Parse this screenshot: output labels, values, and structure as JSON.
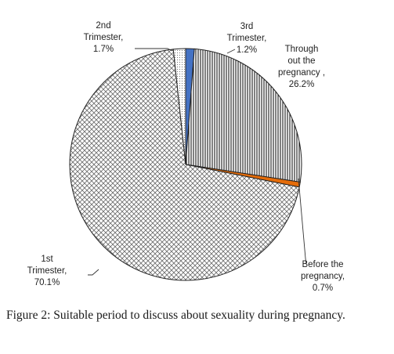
{
  "chart_data": {
    "type": "pie",
    "slices": [
      {
        "label": [
          "3rd",
          "Trimester,",
          "1.2%"
        ],
        "value": 1.2,
        "pattern": "solid",
        "color": "#4472c4"
      },
      {
        "label": [
          "Through",
          "out the",
          "pregnancy ,",
          "26.2%"
        ],
        "value": 26.2,
        "pattern": "vertical-lines",
        "color": "#333333"
      },
      {
        "label": [
          "Before the",
          "pregnancy,",
          "0.7%"
        ],
        "value": 0.7,
        "pattern": "solid",
        "color": "#e46c0a"
      },
      {
        "label": [
          "1st",
          "Trimester,",
          "70.1%"
        ],
        "value": 70.1,
        "pattern": "crosshatch",
        "color": "#555555"
      },
      {
        "label": [
          "2nd",
          "Trimester,",
          "1.7%"
        ],
        "value": 1.7,
        "pattern": "dots",
        "color": "#999999"
      }
    ],
    "start_direction": "12 o'clock",
    "direction": "clockwise",
    "legend": "none"
  },
  "caption": {
    "label": "Figure 2:",
    "text": "Suitable period to discuss about sexuality during pregnancy."
  }
}
